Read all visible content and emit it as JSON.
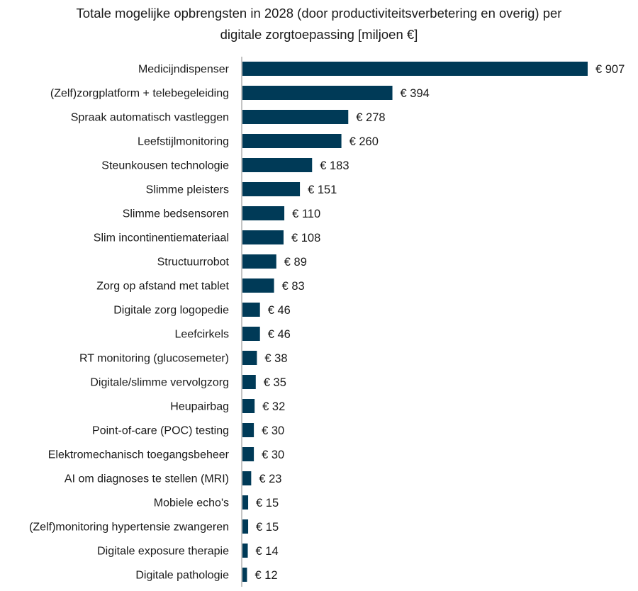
{
  "chart_data": {
    "type": "bar",
    "orientation": "horizontal",
    "title_line1": "Totale mogelijke opbrengsten in 2028 (door productiviteitsverbetering en overig) per",
    "title_line2": "digitale zorgtoepassing [miljoen €]",
    "value_prefix": "€ ",
    "bar_color": "#003a57",
    "grid": false,
    "categories": [
      "Medicijndispenser",
      "(Zelf)zorgplatform + telebegeleiding",
      "Spraak automatisch vastleggen",
      "Leefstijlmonitoring",
      "Steunkousen technologie",
      "Slimme pleisters",
      "Slimme bedsensoren",
      "Slim incontinentiemateriaal",
      "Structuurrobot",
      "Zorg op afstand met tablet",
      "Digitale zorg logopedie",
      "Leefcirkels",
      "RT monitoring (glucosemeter)",
      "Digitale/slimme vervolgzorg",
      "Heupairbag",
      "Point-of-care (POC) testing",
      "Elektromechanisch toegangsbeheer",
      "AI om diagnoses te stellen (MRI)",
      "Mobiele echo's",
      "(Zelf)monitoring hypertensie zwangeren",
      "Digitale exposure therapie",
      "Digitale pathologie"
    ],
    "values": [
      907,
      394,
      278,
      260,
      183,
      151,
      110,
      108,
      89,
      83,
      46,
      46,
      38,
      35,
      32,
      30,
      30,
      23,
      15,
      15,
      14,
      12
    ],
    "xlim": [
      0,
      907
    ]
  }
}
